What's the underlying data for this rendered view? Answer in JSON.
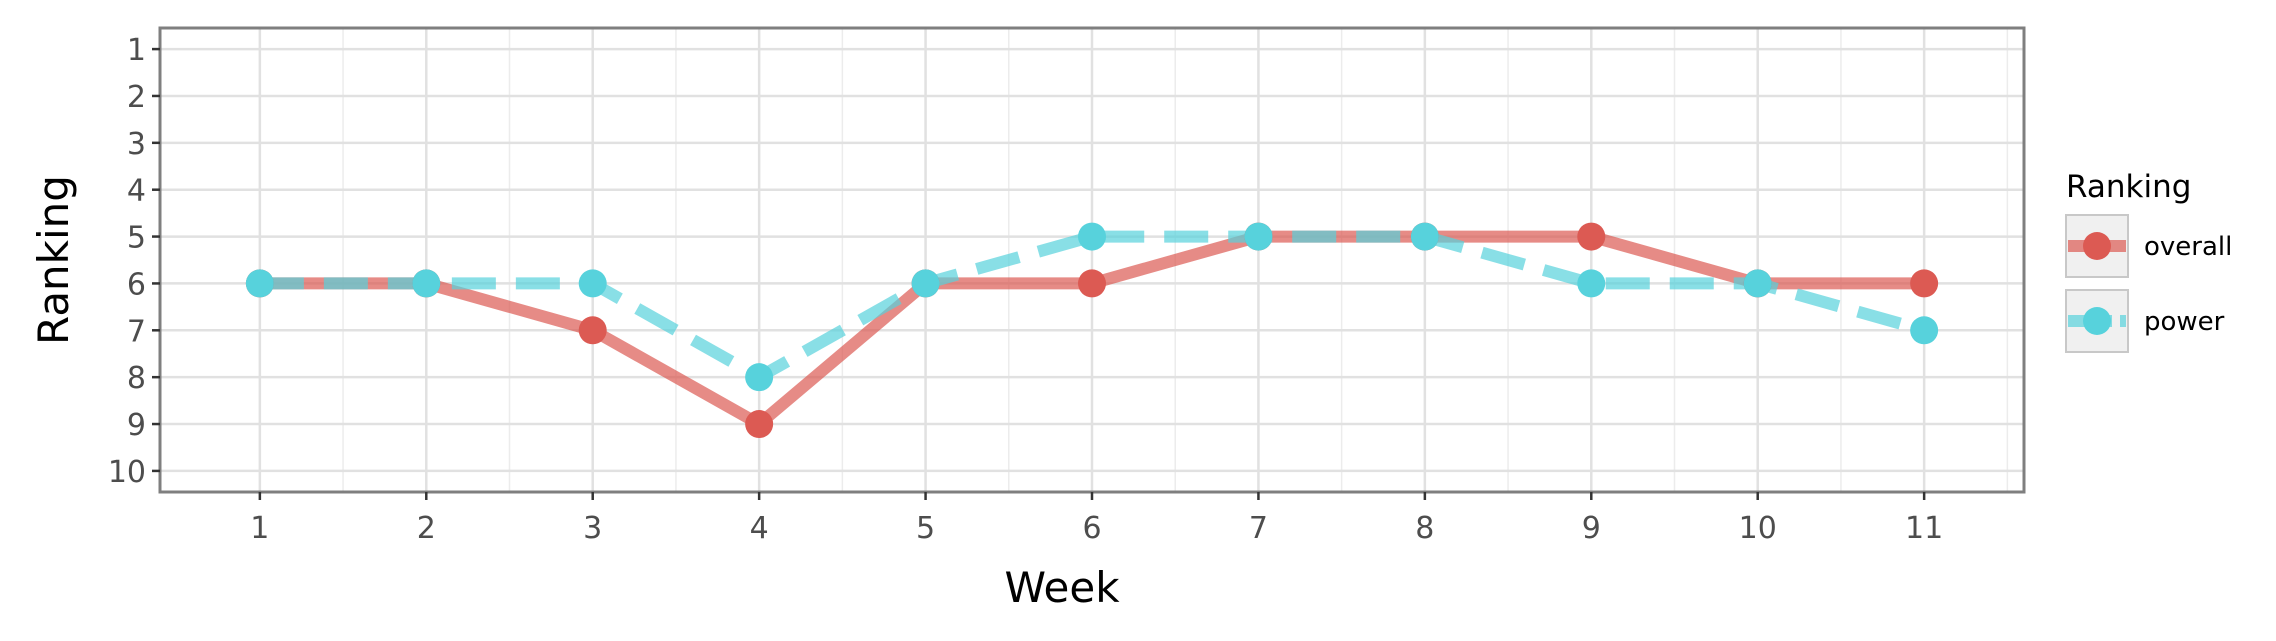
{
  "chart_data": {
    "type": "line",
    "title": "",
    "xlabel": "Week",
    "ylabel": "Ranking",
    "x": [
      1,
      2,
      3,
      4,
      5,
      6,
      7,
      8,
      9,
      10,
      11
    ],
    "x_ticks": [
      "1",
      "2",
      "3",
      "4",
      "5",
      "6",
      "7",
      "8",
      "9",
      "10",
      "11"
    ],
    "y_ticks": [
      "1",
      "2",
      "3",
      "4",
      "5",
      "6",
      "7",
      "8",
      "9",
      "10"
    ],
    "xlim": [
      0.4,
      11.6
    ],
    "ylim": [
      10.45,
      0.55
    ],
    "y_reversed": true,
    "grid": true,
    "legend": {
      "title": "Ranking",
      "placement": "right"
    },
    "series": [
      {
        "name": "overall",
        "color": "#dc5a53",
        "line_style": "solid",
        "values": [
          6,
          6,
          7,
          9,
          6,
          6,
          5,
          5,
          5,
          6,
          6
        ]
      },
      {
        "name": "power",
        "color": "#57d2dc",
        "line_style": "dashed",
        "values": [
          6,
          6,
          6,
          8,
          6,
          5,
          5,
          5,
          6,
          6,
          7
        ]
      }
    ]
  }
}
